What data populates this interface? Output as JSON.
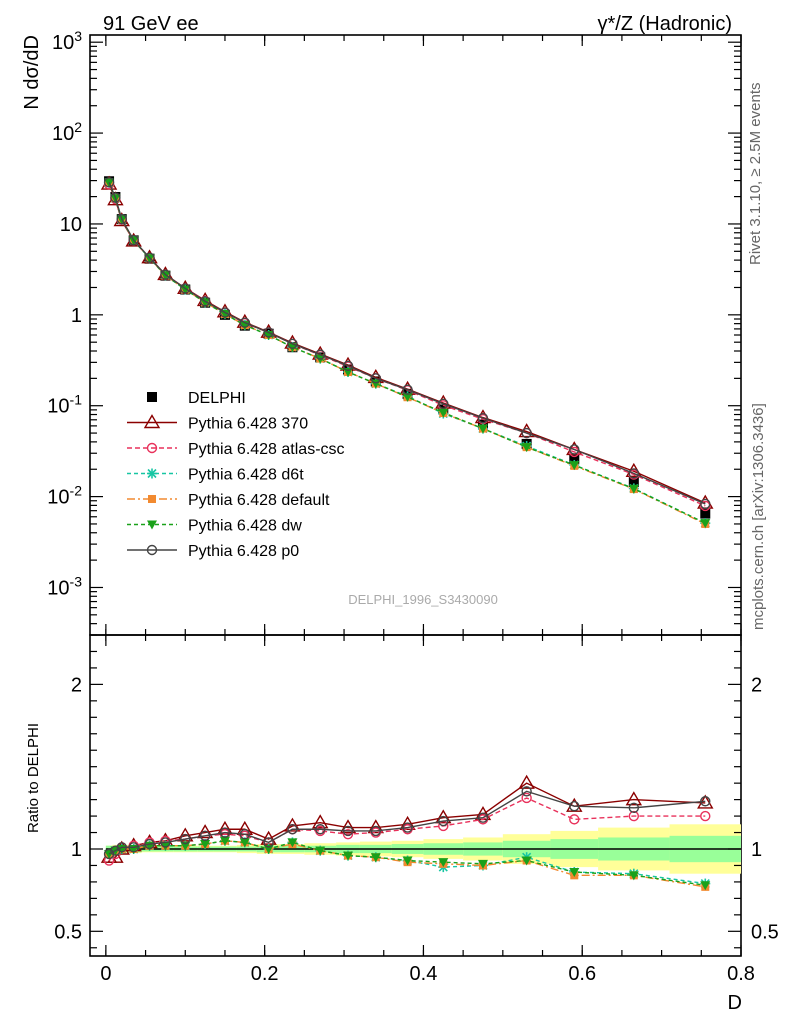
{
  "header": {
    "left": "91 GeV ee",
    "right": "γ*/Z (Hadronic)"
  },
  "side_labels": {
    "rivet": "Rivet 3.1.10, ≥ 2.5M events",
    "mcplots": "mcplots.cern.ch [arXiv:1306.3436]"
  },
  "watermark": "DELPHI_1996_S3430090",
  "colors": {
    "data": "#000000",
    "p370": "#8b0000",
    "atlascsc": "#e8315b",
    "d6t": "#17c6a3",
    "default": "#f28a30",
    "dw": "#1aa11a",
    "p0": "#444444",
    "band_outer": "#ffff99",
    "band_inner": "#99ff99"
  },
  "chart_data": [
    {
      "type": "scatter",
      "panel": "main",
      "ylabel": "N dσ/dD",
      "xlabel": "",
      "yscale": "log",
      "ylim": [
        0.0003,
        1200
      ],
      "xlim": [
        -0.02,
        0.8
      ],
      "ytick_labels": [
        "10^-3",
        "10^-2",
        "10^-1",
        "1",
        "10",
        "10^2",
        "10^3"
      ],
      "x": [
        0.004,
        0.012,
        0.02,
        0.035,
        0.055,
        0.075,
        0.1,
        0.125,
        0.15,
        0.175,
        0.205,
        0.235,
        0.27,
        0.305,
        0.34,
        0.38,
        0.425,
        0.475,
        0.53,
        0.59,
        0.665,
        0.755
      ],
      "series": [
        {
          "name": "DELPHI",
          "key": "data",
          "values": [
            29.5,
            19.8,
            11.3,
            6.6,
            4.15,
            2.7,
            1.9,
            1.36,
            1.0,
            0.76,
            0.62,
            0.44,
            0.34,
            0.25,
            0.185,
            0.135,
            0.091,
            0.062,
            0.038,
            0.026,
            0.0145,
            0.0065
          ]
        },
        {
          "name": "Pythia 6.428 370",
          "key": "p370",
          "values": [
            27.5,
            18.5,
            10.9,
            6.5,
            4.25,
            2.78,
            1.96,
            1.44,
            1.08,
            0.83,
            0.645,
            0.49,
            0.37,
            0.28,
            0.205,
            0.152,
            0.107,
            0.074,
            0.052,
            0.033,
            0.019,
            0.0085
          ]
        },
        {
          "name": "Pythia 6.428 atlas-csc",
          "key": "atlascsc",
          "values": [
            27.3,
            18.8,
            11.1,
            6.6,
            4.25,
            2.77,
            1.95,
            1.42,
            1.06,
            0.81,
            0.64,
            0.48,
            0.36,
            0.27,
            0.2,
            0.148,
            0.101,
            0.071,
            0.05,
            0.031,
            0.0175,
            0.0079
          ]
        },
        {
          "name": "Pythia 6.428 d6t",
          "key": "d6t",
          "values": [
            28.5,
            19.2,
            11.2,
            6.6,
            4.2,
            2.72,
            1.9,
            1.37,
            1.02,
            0.77,
            0.6,
            0.44,
            0.33,
            0.235,
            0.175,
            0.127,
            0.082,
            0.056,
            0.036,
            0.0223,
            0.0123,
            0.0051
          ]
        },
        {
          "name": "Pythia 6.428 default",
          "key": "default",
          "values": [
            28.5,
            19.2,
            11.2,
            6.6,
            4.2,
            2.72,
            1.9,
            1.37,
            1.02,
            0.77,
            0.6,
            0.44,
            0.33,
            0.235,
            0.175,
            0.124,
            0.083,
            0.056,
            0.035,
            0.0218,
            0.0121,
            0.005
          ]
        },
        {
          "name": "Pythia 6.428 dw",
          "key": "dw",
          "values": [
            28.5,
            19.2,
            11.2,
            6.6,
            4.2,
            2.72,
            1.9,
            1.37,
            1.02,
            0.77,
            0.6,
            0.44,
            0.33,
            0.235,
            0.175,
            0.125,
            0.084,
            0.056,
            0.035,
            0.0222,
            0.0122,
            0.0051
          ]
        },
        {
          "name": "Pythia 6.428 p0",
          "key": "p0",
          "values": [
            28.7,
            19.5,
            11.3,
            6.65,
            4.25,
            2.77,
            1.95,
            1.41,
            1.06,
            0.82,
            0.64,
            0.48,
            0.365,
            0.275,
            0.2,
            0.15,
            0.105,
            0.073,
            0.05,
            0.033,
            0.018,
            0.0083
          ]
        }
      ],
      "legend_position": "bottom-left"
    },
    {
      "type": "line",
      "panel": "ratio",
      "ylabel": "Ratio to DELPHI",
      "xlabel": "D",
      "ylim": [
        0.35,
        2.3
      ],
      "xlim": [
        -0.02,
        0.8
      ],
      "ytick_labels": [
        "0.5",
        "1",
        "2"
      ],
      "xtick_labels": [
        "0",
        "0.2",
        "0.4",
        "0.6",
        "0.8"
      ],
      "x": [
        0.004,
        0.012,
        0.02,
        0.035,
        0.055,
        0.075,
        0.1,
        0.125,
        0.15,
        0.175,
        0.205,
        0.235,
        0.27,
        0.305,
        0.34,
        0.38,
        0.425,
        0.475,
        0.53,
        0.59,
        0.665,
        0.755
      ],
      "band_edges": [
        0,
        0.008,
        0.016,
        0.024,
        0.045,
        0.065,
        0.085,
        0.115,
        0.135,
        0.165,
        0.19,
        0.22,
        0.25,
        0.29,
        0.32,
        0.36,
        0.4,
        0.45,
        0.5,
        0.56,
        0.62,
        0.71,
        0.8
      ],
      "band_inner": [
        0.02,
        0.02,
        0.02,
        0.02,
        0.015,
        0.015,
        0.015,
        0.015,
        0.015,
        0.015,
        0.02,
        0.02,
        0.02,
        0.025,
        0.025,
        0.03,
        0.035,
        0.04,
        0.05,
        0.06,
        0.07,
        0.08
      ],
      "band_outer": [
        0.02,
        0.025,
        0.025,
        0.025,
        0.02,
        0.02,
        0.02,
        0.02,
        0.02,
        0.025,
        0.03,
        0.03,
        0.035,
        0.04,
        0.045,
        0.05,
        0.06,
        0.07,
        0.09,
        0.11,
        0.13,
        0.15
      ],
      "series": [
        {
          "name": "Pythia 6.428 370",
          "key": "p370",
          "values": [
            0.95,
            0.95,
            1.0,
            1.02,
            1.04,
            1.05,
            1.08,
            1.1,
            1.12,
            1.12,
            1.06,
            1.14,
            1.16,
            1.13,
            1.13,
            1.15,
            1.19,
            1.21,
            1.4,
            1.26,
            1.3,
            1.28
          ]
        },
        {
          "name": "Pythia 6.428 atlas-csc",
          "key": "atlascsc",
          "values": [
            0.93,
            0.97,
            1.01,
            1.02,
            1.04,
            1.05,
            1.06,
            1.08,
            1.09,
            1.08,
            1.04,
            1.12,
            1.11,
            1.09,
            1.1,
            1.12,
            1.14,
            1.18,
            1.31,
            1.18,
            1.2,
            1.2
          ]
        },
        {
          "name": "Pythia 6.428 d6t",
          "key": "d6t",
          "values": [
            0.97,
            0.99,
            1.0,
            1.0,
            1.02,
            1.02,
            1.02,
            1.03,
            1.05,
            1.04,
            1.0,
            1.04,
            0.99,
            0.96,
            0.95,
            0.93,
            0.89,
            0.9,
            0.95,
            0.86,
            0.85,
            0.79
          ]
        },
        {
          "name": "Pythia 6.428 default",
          "key": "default",
          "values": [
            0.97,
            0.99,
            1.0,
            1.0,
            1.02,
            1.02,
            1.02,
            1.03,
            1.05,
            1.04,
            1.0,
            1.03,
            0.99,
            0.96,
            0.95,
            0.92,
            0.91,
            0.9,
            0.93,
            0.84,
            0.84,
            0.77
          ]
        },
        {
          "name": "Pythia 6.428 dw",
          "key": "dw",
          "values": [
            0.97,
            0.99,
            1.0,
            1.0,
            1.02,
            1.02,
            1.02,
            1.03,
            1.05,
            1.04,
            1.0,
            1.04,
            0.99,
            0.96,
            0.95,
            0.93,
            0.92,
            0.91,
            0.93,
            0.86,
            0.84,
            0.78
          ]
        },
        {
          "name": "Pythia 6.428 p0",
          "key": "p0",
          "values": [
            0.97,
            0.99,
            1.01,
            1.01,
            1.03,
            1.04,
            1.06,
            1.08,
            1.1,
            1.09,
            1.04,
            1.12,
            1.12,
            1.11,
            1.11,
            1.13,
            1.17,
            1.19,
            1.35,
            1.26,
            1.25,
            1.29
          ]
        }
      ]
    }
  ]
}
